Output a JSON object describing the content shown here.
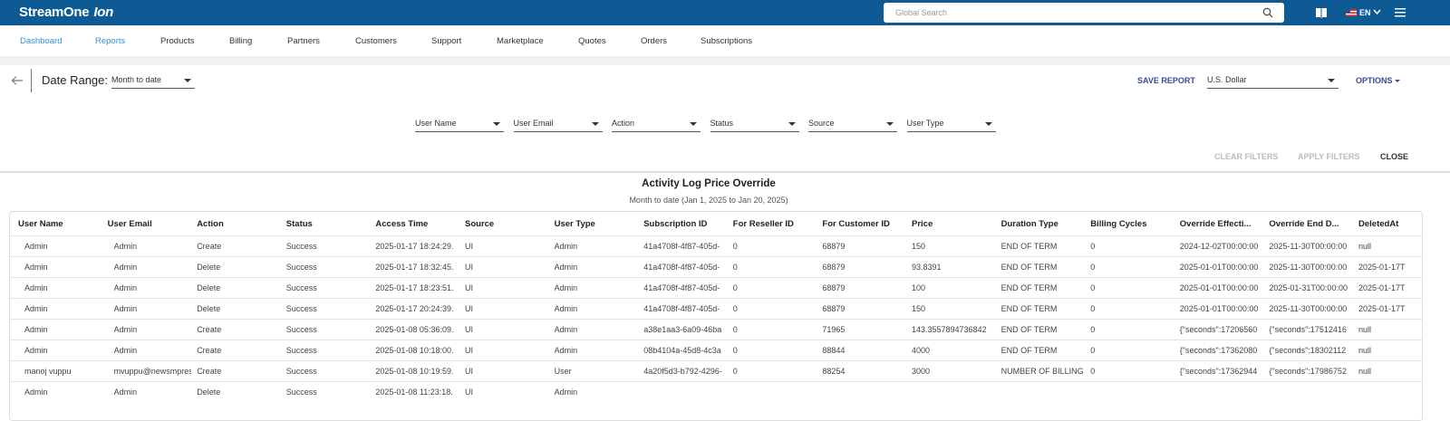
{
  "header": {
    "logo": "StreamOne",
    "logo_suffix": "Ion",
    "search_placeholder": "Global Search",
    "language": "EN"
  },
  "nav": [
    "Dashboard",
    "Reports",
    "Products",
    "Billing",
    "Partners",
    "Customers",
    "Support",
    "Marketplace",
    "Quotes",
    "Orders",
    "Subscriptions"
  ],
  "toolbar": {
    "date_range_label": "Date Range:",
    "date_range_value": "Month to date",
    "save_report": "SAVE REPORT",
    "currency": "U.S. Dollar",
    "options": "OPTIONS"
  },
  "filters": [
    "User Name",
    "User Email",
    "Action",
    "Status",
    "Source",
    "User Type"
  ],
  "filter_buttons": {
    "clear": "CLEAR FILTERS",
    "apply": "APPLY FILTERS",
    "close": "CLOSE"
  },
  "report": {
    "title": "Activity Log Price Override",
    "subtitle": "Month to date (Jan 1, 2025 to Jan 20, 2025)"
  },
  "table": {
    "columns": [
      "User Name",
      "User Email",
      "Action",
      "Status",
      "Access Time",
      "Source",
      "User Type",
      "Subscription ID",
      "For Reseller ID",
      "For Customer ID",
      "Price",
      "Duration Type",
      "Billing Cycles",
      "Override Effecti...",
      "Override End D...",
      "DeletedAt"
    ],
    "rows": [
      [
        "Admin",
        "Admin",
        "Create",
        "Success",
        "2025-01-17 18:24:29.",
        "UI",
        "Admin",
        "41a4708f-4f87-405d-",
        "0",
        "68879",
        "150",
        "END OF TERM",
        "0",
        "2024-12-02T00:00:00",
        "2025-11-30T00:00:00",
        "null"
      ],
      [
        "Admin",
        "Admin",
        "Delete",
        "Success",
        "2025-01-17 18:32:45.",
        "UI",
        "Admin",
        "41a4708f-4f87-405d-",
        "0",
        "68879",
        "93.8391",
        "END OF TERM",
        "0",
        "2025-01-01T00:00:00",
        "2025-11-30T00:00:00",
        "2025-01-17T"
      ],
      [
        "Admin",
        "Admin",
        "Delete",
        "Success",
        "2025-01-17 18:23:51.",
        "UI",
        "Admin",
        "41a4708f-4f87-405d-",
        "0",
        "68879",
        "100",
        "END OF TERM",
        "0",
        "2025-01-01T00:00:00",
        "2025-01-31T00:00:00",
        "2025-01-17T"
      ],
      [
        "Admin",
        "Admin",
        "Delete",
        "Success",
        "2025-01-17 20:24:39.",
        "UI",
        "Admin",
        "41a4708f-4f87-405d-",
        "0",
        "68879",
        "150",
        "END OF TERM",
        "0",
        "2025-01-01T00:00:00",
        "2025-11-30T00:00:00",
        "2025-01-17T"
      ],
      [
        "Admin",
        "Admin",
        "Create",
        "Success",
        "2025-01-08 05:36:09.",
        "UI",
        "Admin",
        "a38e1aa3-6a09-46ba",
        "0",
        "71965",
        "143.3557894736842",
        "END OF TERM",
        "0",
        "{\"seconds\":17206560",
        "{\"seconds\":17512416",
        "null"
      ],
      [
        "Admin",
        "Admin",
        "Create",
        "Success",
        "2025-01-08 10:18:00.",
        "UI",
        "Admin",
        "08b4104a-45d8-4c3a",
        "0",
        "88844",
        "4000",
        "END OF TERM",
        "0",
        "{\"seconds\":17362080",
        "{\"seconds\":18302112",
        "null"
      ],
      [
        "manoj vuppu",
        "mvuppu@newsmpres",
        "Create",
        "Success",
        "2025-01-08 10:19:59.",
        "UI",
        "User",
        "4a20f5d3-b792-4296-",
        "0",
        "88254",
        "3000",
        "NUMBER OF BILLING",
        "0",
        "{\"seconds\":17362944",
        "{\"seconds\":17986752",
        "null"
      ],
      [
        "Admin",
        "Admin",
        "Delete",
        "Success",
        "2025-01-08 11:23:18.",
        "UI",
        "Admin"
      ]
    ]
  }
}
